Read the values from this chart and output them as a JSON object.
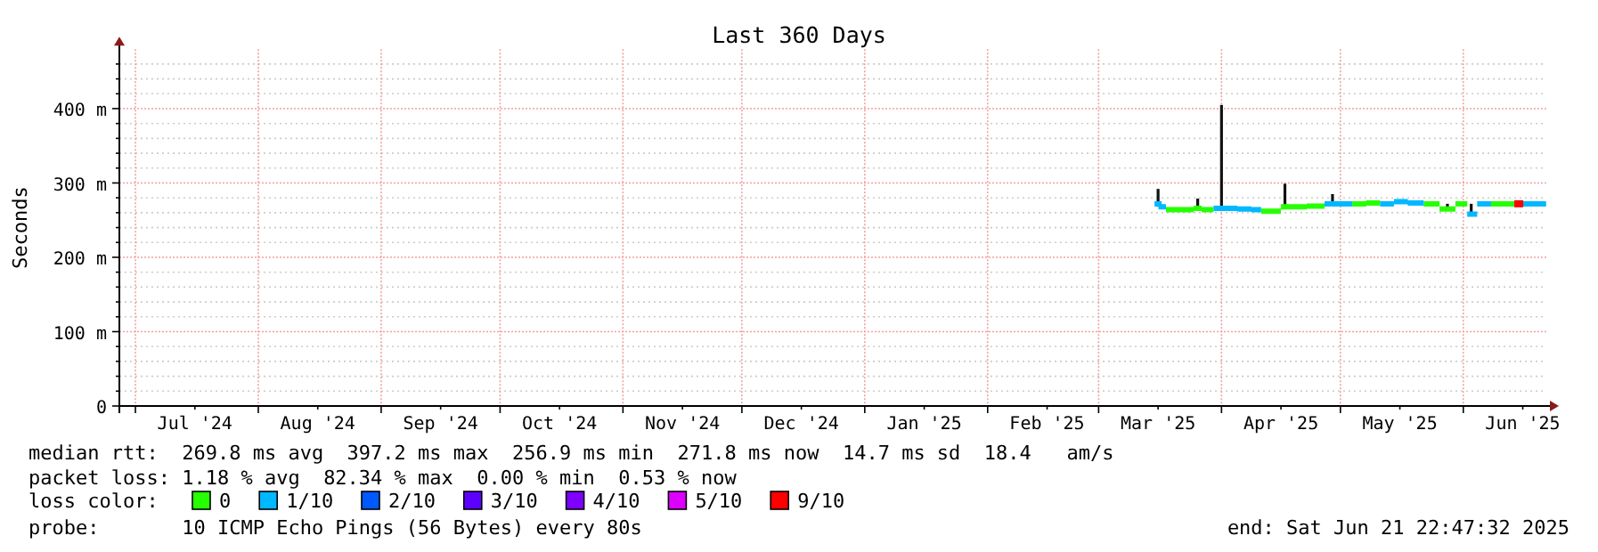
{
  "chart_data": {
    "type": "step",
    "title": "Last 360 Days",
    "ylabel": "Seconds",
    "legend_title": "loss color:",
    "legend": "bottom",
    "grid": true,
    "annotations": [
      "median rtt:  269.8 ms avg  397.2 ms max  256.9 ms min  271.8 ms now  14.7 ms sd  18.4   am/s",
      "packet loss: 1.18 % avg  82.34 % max  0.00 % min  0.53 % now",
      "probe:       10 ICMP Echo Pings (56 Bytes) every 80s",
      "end: Sat Jun 21 22:47:32 2025"
    ],
    "xlim": [
      "2024-06-26T22:47",
      "2025-06-21T22:47"
    ],
    "xticks": [
      {
        "value": "2024-07-01",
        "label": null
      },
      {
        "value": "2024-07-16",
        "label": "Jul '24"
      },
      {
        "value": "2024-08-01",
        "label": null
      },
      {
        "value": "2024-08-16",
        "label": "Aug '24"
      },
      {
        "value": "2024-09-01",
        "label": null
      },
      {
        "value": "2024-09-16",
        "label": "Sep '24"
      },
      {
        "value": "2024-10-01",
        "label": null
      },
      {
        "value": "2024-10-16",
        "label": "Oct '24"
      },
      {
        "value": "2024-11-01",
        "label": null
      },
      {
        "value": "2024-11-16",
        "label": "Nov '24"
      },
      {
        "value": "2024-12-01",
        "label": null
      },
      {
        "value": "2024-12-16",
        "label": "Dec '24"
      },
      {
        "value": "2025-01-01",
        "label": null
      },
      {
        "value": "2025-01-16",
        "label": "Jan '25"
      },
      {
        "value": "2025-02-01",
        "label": null
      },
      {
        "value": "2025-02-16",
        "label": "Feb '25"
      },
      {
        "value": "2025-03-01",
        "label": null
      },
      {
        "value": "2025-03-16",
        "label": "Mar '25"
      },
      {
        "value": "2025-04-01",
        "label": null
      },
      {
        "value": "2025-04-16",
        "label": "Apr '25"
      },
      {
        "value": "2025-05-01",
        "label": null
      },
      {
        "value": "2025-05-16",
        "label": "May '25"
      },
      {
        "value": "2025-06-01",
        "label": null
      },
      {
        "value": "2025-06-16",
        "label": "Jun '25"
      }
    ],
    "ylim": [
      0,
      480
    ],
    "yticks": [
      {
        "value": 0,
        "label": "0"
      },
      {
        "value": 20,
        "label": null
      },
      {
        "value": 40,
        "label": null
      },
      {
        "value": 60,
        "label": null
      },
      {
        "value": 80,
        "label": null
      },
      {
        "value": 100,
        "label": "100 m"
      },
      {
        "value": 120,
        "label": null
      },
      {
        "value": 140,
        "label": null
      },
      {
        "value": 160,
        "label": null
      },
      {
        "value": 180,
        "label": null
      },
      {
        "value": 200,
        "label": "200 m"
      },
      {
        "value": 220,
        "label": null
      },
      {
        "value": 240,
        "label": null
      },
      {
        "value": 260,
        "label": null
      },
      {
        "value": 280,
        "label": null
      },
      {
        "value": 300,
        "label": "300 m"
      },
      {
        "value": 320,
        "label": null
      },
      {
        "value": 340,
        "label": null
      },
      {
        "value": 360,
        "label": null
      },
      {
        "value": 380,
        "label": null
      },
      {
        "value": 400,
        "label": "400 m"
      },
      {
        "value": 420,
        "label": null
      },
      {
        "value": 440,
        "label": null
      },
      {
        "value": 460,
        "label": null
      }
    ],
    "x": [
      "2025-03-16",
      "2025-03-17",
      "2025-03-19",
      "2025-03-21",
      "2025-03-24",
      "2025-03-26",
      "2025-03-28",
      "2025-04-01",
      "2025-04-03",
      "2025-04-07",
      "2025-04-10",
      "2025-04-12",
      "2025-04-15",
      "2025-04-17",
      "2025-04-20",
      "2025-04-25",
      "2025-04-29",
      "2025-05-02",
      "2025-05-06",
      "2025-05-09",
      "2025-05-13",
      "2025-05-16",
      "2025-05-20",
      "2025-05-24",
      "2025-05-28",
      "2025-06-01",
      "2025-06-03",
      "2025-06-06",
      "2025-06-10",
      "2025-06-13",
      "2025-06-15",
      "2025-06-17",
      "2025-06-21"
    ],
    "series": [
      {
        "name": "0",
        "color": "#26ff00",
        "values": [
          null,
          null,
          264,
          264,
          264,
          266,
          264,
          null,
          null,
          null,
          null,
          262,
          262,
          268,
          268,
          269,
          null,
          null,
          272,
          273,
          null,
          null,
          null,
          272,
          265,
          272,
          null,
          null,
          272,
          272,
          null,
          null,
          null
        ],
        "errors": [
          null,
          null,
          null,
          null,
          null,
          [
            264,
            279
          ],
          null,
          null,
          null,
          null,
          null,
          null,
          null,
          [
            267,
            299
          ],
          null,
          null,
          null,
          null,
          null,
          null,
          null,
          null,
          null,
          null,
          [
            263,
            272
          ],
          null,
          null,
          null,
          null,
          null,
          null,
          null,
          null
        ]
      },
      {
        "name": "1/10",
        "color": "#00b8ff",
        "values": [
          272,
          268,
          null,
          null,
          null,
          null,
          null,
          266,
          266,
          265,
          264,
          null,
          null,
          null,
          null,
          null,
          272,
          272,
          null,
          null,
          272,
          275,
          273,
          null,
          null,
          null,
          258,
          272,
          null,
          null,
          null,
          272,
          272
        ],
        "errors": [
          [
            268,
            292
          ],
          null,
          null,
          null,
          null,
          null,
          null,
          [
            264,
            405
          ],
          null,
          null,
          null,
          null,
          null,
          null,
          null,
          null,
          [
            270,
            285
          ],
          null,
          null,
          null,
          null,
          null,
          null,
          null,
          null,
          null,
          [
            256,
            272
          ],
          null,
          null,
          null,
          null,
          null,
          null
        ]
      },
      {
        "name": "2/10",
        "color": "#0059ff",
        "values": [
          null,
          null,
          null,
          null,
          null,
          null,
          null,
          null,
          null,
          null,
          null,
          null,
          null,
          null,
          null,
          null,
          null,
          null,
          null,
          null,
          null,
          null,
          null,
          null,
          null,
          null,
          null,
          null,
          null,
          null,
          null,
          null,
          null
        ]
      },
      {
        "name": "3/10",
        "color": "#5e00ff",
        "values": [
          null,
          null,
          null,
          null,
          null,
          null,
          null,
          null,
          null,
          null,
          null,
          null,
          null,
          null,
          null,
          null,
          null,
          null,
          null,
          null,
          null,
          null,
          null,
          null,
          null,
          null,
          null,
          null,
          null,
          null,
          null,
          null,
          null
        ]
      },
      {
        "name": "4/10",
        "color": "#7e00ff",
        "values": [
          null,
          null,
          null,
          null,
          null,
          null,
          null,
          null,
          null,
          null,
          null,
          null,
          null,
          null,
          null,
          null,
          null,
          null,
          null,
          null,
          null,
          null,
          null,
          null,
          null,
          null,
          null,
          null,
          null,
          null,
          null,
          null,
          null
        ]
      },
      {
        "name": "5/10",
        "color": "#dd00ff",
        "values": [
          null,
          null,
          null,
          null,
          null,
          null,
          null,
          null,
          null,
          null,
          null,
          null,
          null,
          null,
          null,
          null,
          null,
          null,
          null,
          null,
          null,
          null,
          null,
          null,
          null,
          null,
          null,
          null,
          null,
          null,
          null,
          null,
          null
        ]
      },
      {
        "name": "9/10",
        "color": "#ff0000",
        "type": "scatter",
        "marker": "square",
        "values": [
          null,
          null,
          null,
          null,
          null,
          null,
          null,
          null,
          null,
          null,
          null,
          null,
          null,
          null,
          null,
          null,
          null,
          null,
          null,
          null,
          null,
          null,
          null,
          null,
          null,
          null,
          null,
          null,
          null,
          null,
          272,
          null,
          null
        ]
      }
    ]
  }
}
